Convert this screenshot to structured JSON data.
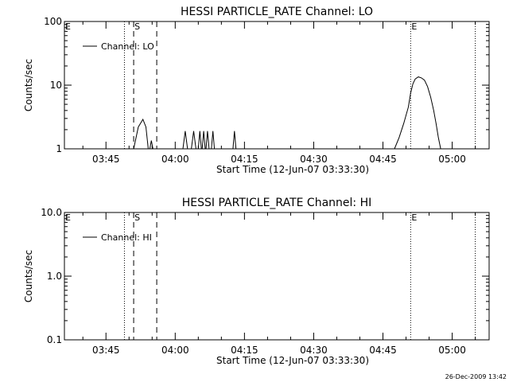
{
  "footer_timestamp": "26-Dec-2009 13:42",
  "chart_data": [
    {
      "type": "line",
      "title": "HESSI PARTICLE_RATE Channel: LO",
      "xlabel": "Start Time (12-Jun-07 03:33:30)",
      "ylabel": "Counts/sec",
      "y_scale": "log",
      "ylim": [
        1,
        100
      ],
      "xlim": [
        "03:36",
        "05:08"
      ],
      "x_ticks": [
        "03:45",
        "04:00",
        "04:15",
        "04:30",
        "04:45",
        "05:00"
      ],
      "y_ticks": [
        "1",
        "10",
        "100"
      ],
      "legend": {
        "position": "top-left",
        "entries": [
          "Channel: LO"
        ]
      },
      "markers": [
        {
          "label": "E",
          "time": "03:36",
          "style": "none"
        },
        {
          "label": "",
          "time": "03:49",
          "style": "dotted"
        },
        {
          "label": "S",
          "time": "03:51",
          "style": "dashed"
        },
        {
          "label": "",
          "time": "03:56",
          "style": "dashed"
        },
        {
          "label": "E",
          "time": "04:51",
          "style": "dotted"
        },
        {
          "label": "",
          "time": "05:05",
          "style": "dotted"
        }
      ],
      "series": [
        {
          "name": "Channel: LO",
          "segments": [
            {
              "x": [
                "03:51:00",
                "03:52:00",
                "03:53:00",
                "03:53:40",
                "03:54:10"
              ],
              "y": [
                1,
                2.2,
                2.9,
                2.2,
                1
              ]
            },
            {
              "x": [
                "03:54:30",
                "03:54:50",
                "03:55:10"
              ],
              "y": [
                1,
                1.35,
                1
              ]
            },
            {
              "x": [
                "04:01:40",
                "04:02:10",
                "04:02:40"
              ],
              "y": [
                1,
                1.9,
                1
              ]
            },
            {
              "x": [
                "04:03:30",
                "04:04:00",
                "04:04:30"
              ],
              "y": [
                1,
                1.9,
                1
              ]
            },
            {
              "x": [
                "04:05:00",
                "04:05:20",
                "04:05:40"
              ],
              "y": [
                1,
                1.9,
                1
              ]
            },
            {
              "x": [
                "04:05:50",
                "04:06:10",
                "04:06:30"
              ],
              "y": [
                1,
                1.9,
                1
              ]
            },
            {
              "x": [
                "04:06:40",
                "04:07:00",
                "04:07:20"
              ],
              "y": [
                1,
                1.9,
                1
              ]
            },
            {
              "x": [
                "04:07:50",
                "04:08:10",
                "04:08:30"
              ],
              "y": [
                1,
                1.9,
                1
              ]
            },
            {
              "x": [
                "04:12:30",
                "04:12:50",
                "04:13:10"
              ],
              "y": [
                1,
                1.9,
                1
              ]
            },
            {
              "x": [
                "04:47:30",
                "04:48:30",
                "04:49:30",
                "04:50:30",
                "04:51:00",
                "04:51:30",
                "04:52:00",
                "04:52:40",
                "04:53:20",
                "04:54:00",
                "04:54:40",
                "04:55:20",
                "04:56:00",
                "04:56:30",
                "04:57:00",
                "04:57:30"
              ],
              "y": [
                1,
                1.5,
                2.5,
                4.5,
                7.5,
                10.5,
                12.5,
                13.5,
                13.0,
                12.0,
                9.5,
                6.5,
                4.0,
                2.5,
                1.5,
                1
              ]
            }
          ]
        }
      ]
    },
    {
      "type": "line",
      "title": "HESSI PARTICLE_RATE Channel: HI",
      "xlabel": "Start Time (12-Jun-07 03:33:30)",
      "ylabel": "Counts/sec",
      "y_scale": "log",
      "ylim": [
        0.1,
        10.0
      ],
      "xlim": [
        "03:36",
        "05:08"
      ],
      "x_ticks": [
        "03:45",
        "04:00",
        "04:15",
        "04:30",
        "04:45",
        "05:00"
      ],
      "y_ticks": [
        "0.1",
        "1.0",
        "10.0"
      ],
      "legend": {
        "position": "top-left",
        "entries": [
          "Channel: HI"
        ]
      },
      "markers": [
        {
          "label": "E",
          "time": "03:36",
          "style": "none"
        },
        {
          "label": "",
          "time": "03:49",
          "style": "dotted"
        },
        {
          "label": "S",
          "time": "03:51",
          "style": "dashed"
        },
        {
          "label": "",
          "time": "03:56",
          "style": "dashed"
        },
        {
          "label": "E",
          "time": "04:51",
          "style": "dotted"
        },
        {
          "label": "",
          "time": "05:05",
          "style": "dotted"
        }
      ],
      "series": [
        {
          "name": "Channel: HI",
          "segments": []
        }
      ]
    }
  ]
}
